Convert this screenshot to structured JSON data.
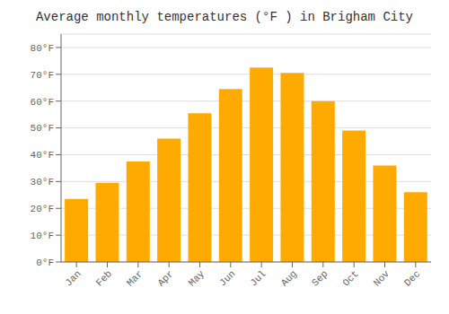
{
  "chart_data": {
    "type": "bar",
    "title": "Average monthly temperatures (°F ) in Brigham City",
    "categories": [
      "Jan",
      "Feb",
      "Mar",
      "Apr",
      "May",
      "Jun",
      "Jul",
      "Aug",
      "Sep",
      "Oct",
      "Nov",
      "Dec"
    ],
    "values": [
      23.5,
      29.5,
      37.5,
      46.0,
      55.5,
      64.5,
      72.5,
      70.5,
      60.0,
      49.0,
      36.0,
      26.0
    ],
    "color": "#FFAA00",
    "ylim": [
      0,
      85
    ],
    "yticks": [
      {
        "value": 0,
        "label": "0°F"
      },
      {
        "value": 10,
        "label": "10°F"
      },
      {
        "value": 20,
        "label": "20°F"
      },
      {
        "value": 30,
        "label": "30°F"
      },
      {
        "value": 40,
        "label": "40°F"
      },
      {
        "value": 50,
        "label": "50°F"
      },
      {
        "value": 60,
        "label": "60°F"
      },
      {
        "value": 70,
        "label": "70°F"
      },
      {
        "value": 80,
        "label": "80°F"
      }
    ],
    "grid": true
  }
}
